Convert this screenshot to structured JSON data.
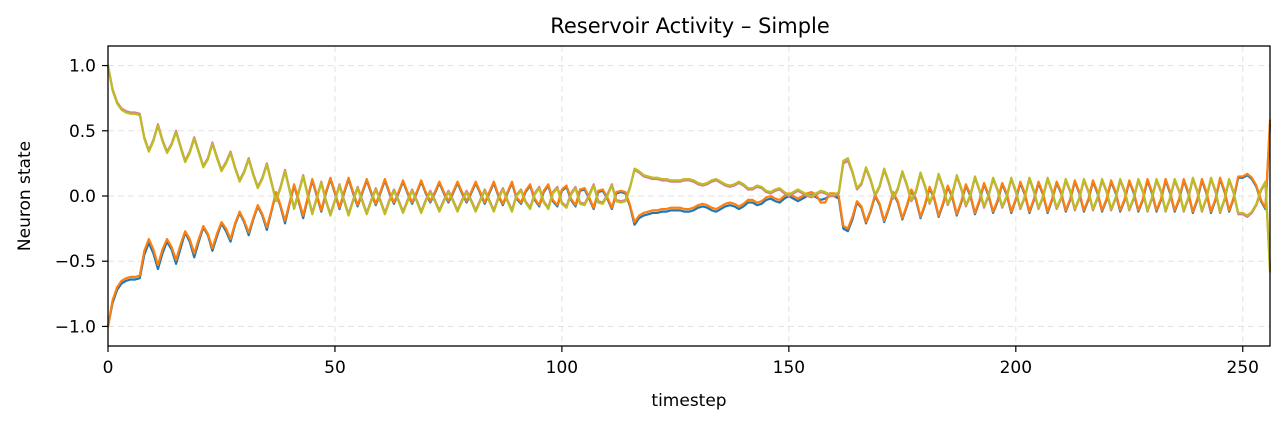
{
  "chart_data": {
    "type": "line",
    "title": "Reservoir Activity – Simple",
    "xlabel": "timestep",
    "ylabel": "Neuron state",
    "xlim": [
      0,
      256
    ],
    "ylim": [
      -1.15,
      1.15
    ],
    "xticks": [
      0,
      50,
      100,
      150,
      200,
      250
    ],
    "xtick_labels": [
      "0",
      "50",
      "100",
      "150",
      "200",
      "250"
    ],
    "yticks": [
      -1.0,
      -0.5,
      0.0,
      0.5,
      1.0
    ],
    "ytick_labels": [
      "−1.0",
      "−0.5",
      "0.0",
      "0.5",
      "1.0"
    ],
    "grid": true,
    "legend": "none",
    "series": [
      {
        "color": "#1f77b4",
        "sign": -1,
        "scale": 1.06,
        "values": [
          -1.0,
          -0.82,
          -0.72,
          -0.67,
          -0.65,
          -0.64,
          -0.64,
          -0.63,
          -0.45,
          -0.36,
          -0.44,
          -0.56,
          -0.44,
          -0.35,
          -0.41,
          -0.52,
          -0.4,
          -0.28,
          -0.35,
          -0.47,
          -0.35,
          -0.24,
          -0.3,
          -0.42,
          -0.31,
          -0.21,
          -0.27,
          -0.35,
          -0.22,
          -0.13,
          -0.2,
          -0.3,
          -0.18,
          -0.08,
          -0.15,
          -0.26,
          -0.12,
          0.02,
          -0.08,
          -0.21,
          -0.06,
          0.08,
          -0.04,
          -0.17,
          -0.02,
          0.12,
          0.0,
          -0.12,
          0.02,
          0.13,
          0.02,
          -0.1,
          0.02,
          0.13,
          0.02,
          -0.08,
          0.02,
          0.12,
          0.02,
          -0.07,
          0.02,
          0.12,
          0.02,
          -0.06,
          0.02,
          0.11,
          0.02,
          -0.06,
          0.02,
          0.11,
          0.02,
          -0.05,
          0.02,
          0.1,
          0.02,
          -0.05,
          0.02,
          0.1,
          0.02,
          -0.05,
          0.02,
          0.1,
          0.02,
          -0.06,
          0.02,
          0.1,
          0.0,
          -0.07,
          0.02,
          0.1,
          -0.02,
          -0.06,
          0.03,
          0.08,
          -0.03,
          -0.08,
          0.03,
          0.08,
          -0.04,
          -0.08,
          0.04,
          0.07,
          -0.03,
          -0.08,
          0.04,
          0.05,
          -0.02,
          -0.1,
          0.03,
          0.04,
          -0.02,
          -0.1,
          0.02,
          0.03,
          0.02,
          -0.08,
          -0.22,
          -0.17,
          -0.15,
          -0.14,
          -0.13,
          -0.13,
          -0.12,
          -0.12,
          -0.11,
          -0.11,
          -0.11,
          -0.12,
          -0.12,
          -0.11,
          -0.09,
          -0.08,
          -0.09,
          -0.11,
          -0.12,
          -0.1,
          -0.08,
          -0.07,
          -0.08,
          -0.1,
          -0.08,
          -0.05,
          -0.05,
          -0.07,
          -0.06,
          -0.03,
          -0.02,
          -0.04,
          -0.05,
          -0.02,
          0.0,
          -0.02,
          -0.04,
          -0.02,
          0.0,
          0.01,
          -0.01,
          -0.03,
          -0.02,
          0.0,
          0.0,
          -0.02,
          -0.25,
          -0.27,
          -0.18,
          -0.05,
          -0.09,
          -0.21,
          -0.12,
          0.0,
          -0.07,
          -0.2,
          -0.1,
          0.02,
          -0.05,
          -0.18,
          -0.08,
          0.04,
          -0.03,
          -0.17,
          -0.07,
          0.06,
          -0.02,
          -0.16,
          -0.06,
          0.07,
          -0.01,
          -0.15,
          -0.05,
          0.08,
          0.0,
          -0.14,
          -0.04,
          0.09,
          0.0,
          -0.13,
          -0.04,
          0.09,
          0.01,
          -0.13,
          -0.03,
          0.1,
          0.01,
          -0.13,
          -0.03,
          0.1,
          0.01,
          -0.13,
          -0.03,
          0.1,
          0.02,
          -0.12,
          -0.03,
          0.11,
          0.02,
          -0.12,
          -0.03,
          0.11,
          0.02,
          -0.12,
          -0.03,
          0.11,
          0.02,
          -0.12,
          -0.03,
          0.11,
          0.02,
          -0.12,
          -0.03,
          0.12,
          0.02,
          -0.12,
          -0.03,
          0.12,
          0.02,
          -0.12,
          -0.03,
          0.12,
          0.02,
          -0.13,
          -0.03,
          0.12,
          0.02,
          -0.13,
          -0.03,
          0.13,
          0.03,
          -0.12,
          -0.02,
          0.14,
          0.14,
          0.16,
          0.13,
          0.07,
          -0.04,
          -0.1,
          0.55
        ]
      },
      {
        "color": "#ff7f0e",
        "values": [
          -1.0,
          -0.8,
          -0.7,
          -0.65,
          -0.63,
          -0.62,
          -0.62,
          -0.61,
          -0.42,
          -0.33,
          -0.41,
          -0.53,
          -0.41,
          -0.33,
          -0.39,
          -0.49,
          -0.37,
          -0.27,
          -0.33,
          -0.44,
          -0.33,
          -0.23,
          -0.29,
          -0.4,
          -0.29,
          -0.2,
          -0.25,
          -0.33,
          -0.21,
          -0.12,
          -0.19,
          -0.28,
          -0.17,
          -0.07,
          -0.14,
          -0.24,
          -0.11,
          0.03,
          -0.07,
          -0.19,
          -0.05,
          0.09,
          -0.03,
          -0.15,
          -0.01,
          0.13,
          0.01,
          -0.11,
          0.03,
          0.14,
          0.03,
          -0.09,
          0.03,
          0.14,
          0.03,
          -0.07,
          0.03,
          0.13,
          0.03,
          -0.06,
          0.03,
          0.13,
          0.03,
          -0.05,
          0.03,
          0.12,
          0.03,
          -0.05,
          0.03,
          0.12,
          0.03,
          -0.04,
          0.03,
          0.11,
          0.03,
          -0.04,
          0.03,
          0.11,
          0.03,
          -0.04,
          0.03,
          0.11,
          0.03,
          -0.05,
          0.03,
          0.11,
          0.01,
          -0.06,
          0.03,
          0.11,
          -0.01,
          -0.05,
          0.04,
          0.09,
          -0.02,
          -0.07,
          0.04,
          0.09,
          -0.03,
          -0.07,
          0.05,
          0.08,
          -0.02,
          -0.07,
          0.05,
          0.06,
          -0.01,
          -0.09,
          0.04,
          0.05,
          -0.01,
          -0.09,
          0.03,
          0.04,
          0.03,
          -0.07,
          -0.2,
          -0.15,
          -0.13,
          -0.12,
          -0.11,
          -0.11,
          -0.1,
          -0.1,
          -0.09,
          -0.09,
          -0.09,
          -0.1,
          -0.1,
          -0.09,
          -0.07,
          -0.06,
          -0.07,
          -0.09,
          -0.1,
          -0.08,
          -0.06,
          -0.05,
          -0.06,
          -0.08,
          -0.06,
          -0.03,
          -0.03,
          -0.05,
          -0.04,
          -0.01,
          0.0,
          -0.02,
          -0.03,
          0.0,
          0.02,
          0.0,
          -0.02,
          0.0,
          0.02,
          0.03,
          0.01,
          -0.05,
          -0.05,
          0.02,
          0.02,
          0.0,
          -0.23,
          -0.25,
          -0.16,
          -0.04,
          -0.08,
          -0.2,
          -0.11,
          0.01,
          -0.06,
          -0.19,
          -0.09,
          0.03,
          -0.04,
          -0.17,
          -0.07,
          0.05,
          -0.02,
          -0.16,
          -0.06,
          0.07,
          -0.01,
          -0.15,
          -0.05,
          0.08,
          0.0,
          -0.14,
          -0.04,
          0.09,
          0.01,
          -0.13,
          -0.03,
          0.1,
          0.01,
          -0.12,
          -0.03,
          0.1,
          0.02,
          -0.12,
          -0.02,
          0.11,
          0.02,
          -0.12,
          -0.02,
          0.11,
          0.02,
          -0.12,
          -0.02,
          0.11,
          0.03,
          -0.11,
          -0.02,
          0.12,
          0.03,
          -0.11,
          -0.02,
          0.12,
          0.03,
          -0.11,
          -0.02,
          0.12,
          0.03,
          -0.11,
          -0.02,
          0.12,
          0.03,
          -0.11,
          -0.02,
          0.13,
          0.03,
          -0.11,
          -0.02,
          0.13,
          0.03,
          -0.11,
          -0.02,
          0.13,
          0.03,
          -0.12,
          -0.02,
          0.13,
          0.03,
          -0.12,
          -0.02,
          0.14,
          0.04,
          -0.11,
          -0.01,
          0.15,
          0.15,
          0.17,
          0.14,
          0.08,
          -0.03,
          -0.09,
          0.58
        ]
      },
      {
        "color": "#d97b8f",
        "values": [
          1.0,
          0.82,
          0.72,
          0.67,
          0.65,
          0.64,
          0.64,
          0.63,
          0.45,
          0.35,
          0.43,
          0.55,
          0.43,
          0.34,
          0.4,
          0.5,
          0.38,
          0.27,
          0.34,
          0.45,
          0.34,
          0.23,
          0.29,
          0.41,
          0.3,
          0.2,
          0.26,
          0.34,
          0.22,
          0.12,
          0.19,
          0.29,
          0.17,
          0.07,
          0.14,
          0.25,
          0.11,
          -0.03,
          0.07,
          0.2,
          0.05,
          -0.09,
          0.03,
          0.16,
          0.01,
          -0.13,
          -0.01,
          0.11,
          -0.03,
          -0.14,
          -0.03,
          0.09,
          -0.03,
          -0.14,
          -0.03,
          0.07,
          -0.03,
          -0.13,
          -0.03,
          0.06,
          -0.03,
          -0.13,
          -0.03,
          0.05,
          -0.03,
          -0.12,
          -0.03,
          0.05,
          -0.03,
          -0.12,
          -0.03,
          0.04,
          -0.03,
          -0.11,
          -0.03,
          0.04,
          -0.03,
          -0.11,
          -0.03,
          0.04,
          -0.03,
          -0.11,
          -0.03,
          0.05,
          -0.03,
          -0.11,
          -0.01,
          0.06,
          -0.03,
          -0.11,
          0.01,
          0.05,
          -0.04,
          -0.09,
          0.02,
          0.07,
          -0.04,
          -0.09,
          0.03,
          0.07,
          -0.05,
          -0.08,
          0.02,
          0.07,
          -0.05,
          -0.06,
          0.01,
          0.09,
          -0.04,
          -0.05,
          0.01,
          0.09,
          -0.03,
          -0.04,
          -0.03,
          0.07,
          0.2,
          0.18,
          0.15,
          0.14,
          0.13,
          0.13,
          0.12,
          0.12,
          0.11,
          0.11,
          0.11,
          0.12,
          0.12,
          0.11,
          0.09,
          0.08,
          0.09,
          0.11,
          0.12,
          0.1,
          0.08,
          0.07,
          0.08,
          0.1,
          0.08,
          0.05,
          0.05,
          0.07,
          0.06,
          0.03,
          0.02,
          0.04,
          0.05,
          0.02,
          0.0,
          0.02,
          0.04,
          0.02,
          0.0,
          -0.01,
          0.01,
          0.03,
          0.02,
          0.0,
          0.0,
          0.02,
          0.25,
          0.27,
          0.18,
          0.05,
          0.09,
          0.21,
          0.12,
          0.0,
          0.07,
          0.2,
          0.1,
          -0.02,
          0.05,
          0.18,
          0.08,
          -0.04,
          0.03,
          0.17,
          0.07,
          -0.06,
          0.02,
          0.16,
          0.06,
          -0.07,
          0.01,
          0.15,
          0.05,
          -0.08,
          0.0,
          0.14,
          0.04,
          -0.09,
          0.0,
          0.13,
          0.04,
          -0.09,
          -0.01,
          0.13,
          0.03,
          -0.1,
          -0.01,
          0.13,
          0.03,
          -0.1,
          -0.01,
          0.13,
          0.03,
          -0.1,
          -0.02,
          0.12,
          0.03,
          -0.11,
          -0.02,
          0.12,
          0.03,
          -0.11,
          -0.02,
          0.12,
          0.03,
          -0.11,
          -0.02,
          0.12,
          0.03,
          -0.11,
          -0.02,
          0.12,
          0.03,
          -0.12,
          -0.02,
          0.12,
          0.03,
          -0.12,
          -0.02,
          0.12,
          0.03,
          -0.12,
          -0.02,
          0.13,
          0.03,
          -0.12,
          -0.02,
          0.13,
          0.03,
          -0.13,
          -0.03,
          0.12,
          0.02,
          -0.14,
          -0.14,
          -0.16,
          -0.13,
          -0.07,
          0.04,
          0.1,
          -0.55
        ]
      },
      {
        "color": "#bcbd22",
        "values": [
          1.0,
          0.81,
          0.71,
          0.66,
          0.64,
          0.63,
          0.63,
          0.62,
          0.44,
          0.34,
          0.42,
          0.54,
          0.42,
          0.33,
          0.39,
          0.49,
          0.37,
          0.26,
          0.33,
          0.44,
          0.33,
          0.22,
          0.28,
          0.4,
          0.29,
          0.19,
          0.25,
          0.33,
          0.21,
          0.11,
          0.18,
          0.28,
          0.16,
          0.06,
          0.13,
          0.24,
          0.1,
          -0.04,
          0.06,
          0.19,
          0.04,
          -0.1,
          0.02,
          0.15,
          0.0,
          -0.14,
          -0.02,
          0.1,
          -0.04,
          -0.15,
          -0.04,
          0.08,
          -0.04,
          -0.15,
          -0.04,
          0.06,
          -0.04,
          -0.14,
          -0.04,
          0.05,
          -0.04,
          -0.14,
          -0.04,
          0.04,
          -0.04,
          -0.13,
          -0.04,
          0.04,
          -0.04,
          -0.13,
          -0.04,
          0.03,
          -0.04,
          -0.12,
          -0.04,
          0.03,
          -0.04,
          -0.12,
          -0.04,
          0.03,
          -0.04,
          -0.12,
          -0.04,
          0.04,
          -0.04,
          -0.12,
          -0.02,
          0.05,
          -0.04,
          -0.12,
          0.0,
          0.04,
          -0.05,
          -0.1,
          0.01,
          0.06,
          -0.05,
          -0.1,
          0.02,
          0.06,
          -0.06,
          -0.09,
          0.01,
          0.06,
          -0.06,
          -0.07,
          0.0,
          0.08,
          -0.05,
          -0.06,
          0.0,
          0.08,
          -0.04,
          -0.05,
          -0.04,
          0.06,
          0.21,
          0.19,
          0.16,
          0.15,
          0.14,
          0.14,
          0.13,
          0.13,
          0.12,
          0.12,
          0.12,
          0.13,
          0.13,
          0.12,
          0.1,
          0.09,
          0.1,
          0.12,
          0.13,
          0.11,
          0.09,
          0.08,
          0.09,
          0.11,
          0.09,
          0.06,
          0.06,
          0.08,
          0.07,
          0.04,
          0.03,
          0.05,
          0.06,
          0.03,
          0.01,
          0.03,
          0.05,
          0.03,
          0.01,
          0.0,
          0.02,
          0.04,
          0.03,
          0.01,
          0.01,
          0.03,
          0.27,
          0.29,
          0.19,
          0.06,
          0.1,
          0.22,
          0.13,
          0.01,
          0.08,
          0.21,
          0.11,
          -0.01,
          0.06,
          0.19,
          0.09,
          -0.03,
          0.04,
          0.18,
          0.08,
          -0.05,
          0.03,
          0.17,
          0.07,
          -0.06,
          0.02,
          0.16,
          0.06,
          -0.07,
          0.01,
          0.15,
          0.05,
          -0.08,
          0.01,
          0.14,
          0.05,
          -0.08,
          0.0,
          0.14,
          0.04,
          -0.09,
          0.0,
          0.14,
          0.04,
          -0.09,
          0.0,
          0.14,
          0.04,
          -0.09,
          -0.01,
          0.13,
          0.04,
          -0.1,
          -0.01,
          0.13,
          0.04,
          -0.1,
          -0.01,
          0.13,
          0.04,
          -0.1,
          -0.01,
          0.13,
          0.04,
          -0.1,
          -0.01,
          0.13,
          0.04,
          -0.11,
          -0.01,
          0.13,
          0.04,
          -0.11,
          -0.01,
          0.13,
          0.04,
          -0.11,
          -0.01,
          0.14,
          0.04,
          -0.11,
          -0.01,
          0.14,
          0.04,
          -0.12,
          -0.02,
          0.13,
          0.03,
          -0.13,
          -0.13,
          -0.15,
          -0.12,
          -0.06,
          0.05,
          0.11,
          -0.58
        ]
      }
    ]
  }
}
